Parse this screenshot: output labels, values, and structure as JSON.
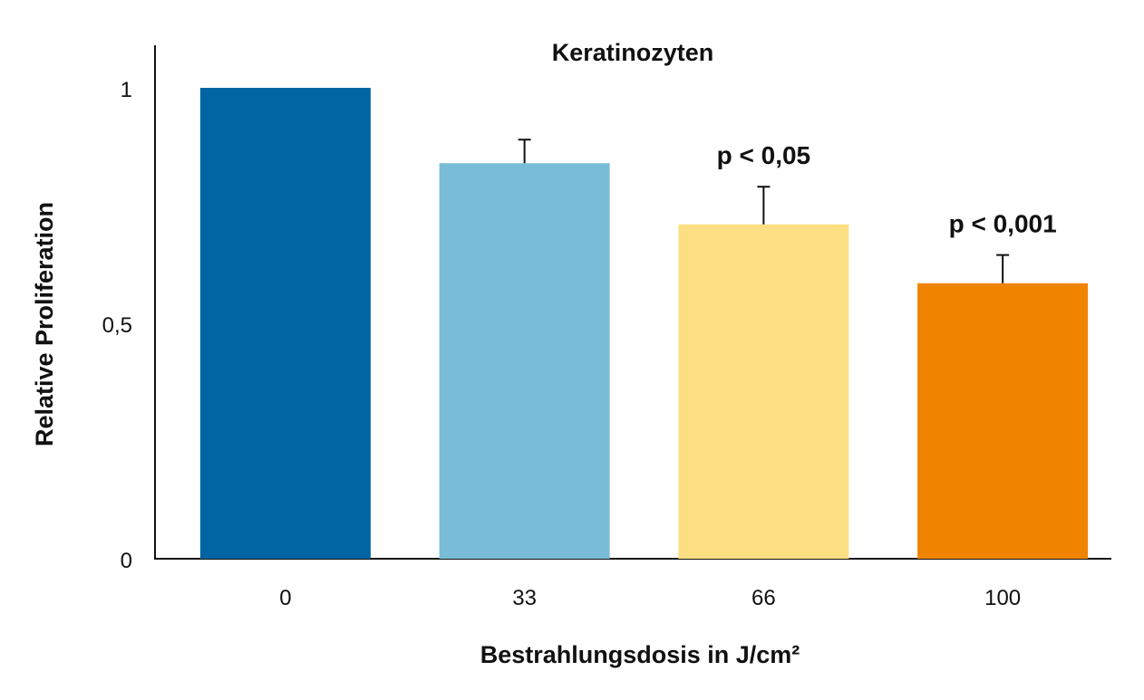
{
  "chart_data": {
    "type": "bar",
    "title": "Keratinozyten",
    "xlabel": "Bestrahlungsdosis in J/cm²",
    "ylabel": "Relative Proliferation",
    "categories": [
      "0",
      "33",
      "66",
      "100"
    ],
    "values": [
      1.0,
      0.84,
      0.71,
      0.585
    ],
    "error_upper": [
      0.0,
      0.89,
      0.79,
      0.645
    ],
    "ylim": [
      0,
      1.1
    ],
    "yticks": [
      {
        "value": 0,
        "label": "0"
      },
      {
        "value": 0.5,
        "label": "0,5"
      },
      {
        "value": 1,
        "label": "1"
      }
    ],
    "annotations": [
      {
        "category": "66",
        "text": "p < 0,05"
      },
      {
        "category": "100",
        "text": "p < 0,001"
      }
    ],
    "colors": [
      "#0065a2",
      "#78bcd8",
      "#fddf83",
      "#f08400"
    ],
    "grid": false,
    "legend": "none"
  }
}
